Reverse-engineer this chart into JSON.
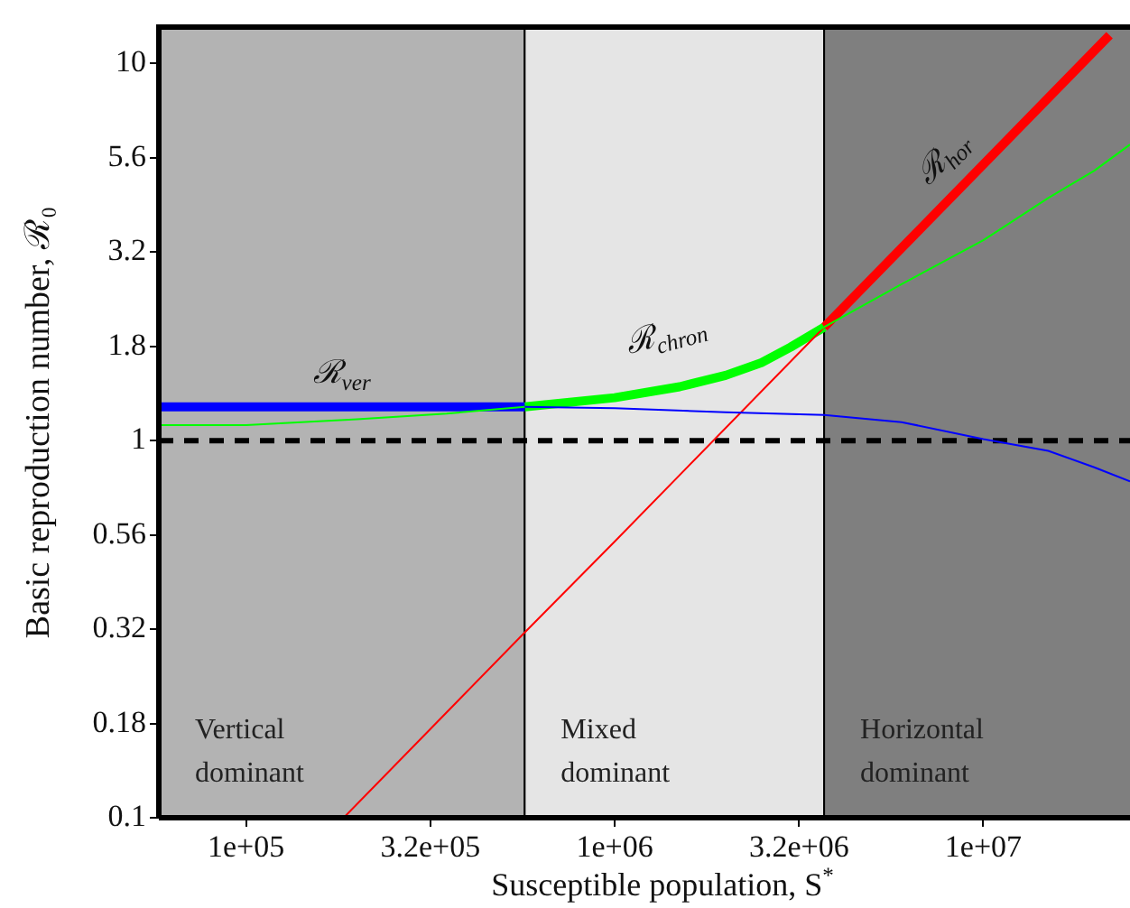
{
  "chart_data": {
    "type": "line",
    "xlabel": "Susceptible population, S$^{*}$",
    "ylabel": "Basic reproduction number, ℛ₀",
    "log": "xy",
    "xlim": [
      58000,
      25000000
    ],
    "ylim": [
      0.1,
      12.5
    ],
    "xticks": [
      {
        "value": 100000,
        "label": "1e+05"
      },
      {
        "value": 316228,
        "label": "3.2e+05"
      },
      {
        "value": 1000000,
        "label": "1e+06"
      },
      {
        "value": 3162278,
        "label": "3.2e+06"
      },
      {
        "value": 10000000,
        "label": "1e+07"
      }
    ],
    "yticks": [
      0.1,
      {
        "value": 0.1778,
        "label": "0.18"
      },
      {
        "value": 0.3162,
        "label": "0.32"
      },
      {
        "value": 0.5623,
        "label": "0.56"
      },
      1,
      {
        "value": 1.778,
        "label": "1.8"
      },
      {
        "value": 3.162,
        "label": "3.2"
      },
      {
        "value": 5.623,
        "label": "5.6"
      },
      10
    ],
    "series": [
      {
        "color": "#0000ff",
        "x": [
          570000,
          1000000,
          2000000,
          3700000,
          6000000,
          10000000,
          15000000,
          20000000,
          25000000
        ],
        "values": [
          1.23,
          1.22,
          1.19,
          1.17,
          1.12,
          1.01,
          0.94,
          0.85,
          0.78
        ]
      },
      {
        "color": "#00ff00",
        "x": [
          58000,
          100000,
          200000,
          350000,
          570000,
          1000000,
          2000000,
          3000000,
          3700000,
          6000000,
          10000000,
          15000000,
          20000000,
          25000000
        ],
        "values": [
          1.1,
          1.1,
          1.14,
          1.18,
          1.23,
          1.3,
          1.49,
          1.77,
          2.0,
          2.6,
          3.4,
          4.4,
          5.2,
          6.1
        ]
      },
      {
        "color": "#ff0000",
        "x": [
          184000,
          570000,
          1000000,
          3700000
        ],
        "values": [
          0.1,
          0.31,
          0.54,
          2.0
        ]
      },
      {
        "name": "ℛ$_{ver}$",
        "color": "#0000ff",
        "x": [
          58000,
          570000
        ],
        "values": [
          1.23,
          1.23
        ]
      },
      {
        "name": "ℛ$_{chron}$",
        "color": "#00ff00",
        "x": [
          570000,
          1000000,
          1500000,
          2000000,
          2500000,
          3000000,
          3700000
        ],
        "values": [
          1.23,
          1.3,
          1.39,
          1.49,
          1.61,
          1.77,
          2.0
        ]
      },
      {
        "name": "ℛ$_{hor}$",
        "color": "#ff0000",
        "x": [
          3700000,
          10000000,
          22000000
        ],
        "values": [
          2.0,
          5.4,
          11.9
        ]
      }
    ],
    "ref_lines": [
      {
        "axis": "y",
        "value": 1,
        "color": "#000000",
        "line_style": "dashed"
      }
    ],
    "bands": [
      {
        "axis": "x",
        "from": 58000,
        "to": 570000,
        "label": "Vertical\ndominant",
        "color": "#b3b3b3"
      },
      {
        "axis": "x",
        "from": 570000,
        "to": 3700000,
        "label": "Mixed\ndominant",
        "color": "#e5e5e5"
      },
      {
        "axis": "x",
        "from": 3700000,
        "to": 25000000,
        "label": "Horizontal\ndominant",
        "color": "#7f7f7f"
      }
    ]
  }
}
